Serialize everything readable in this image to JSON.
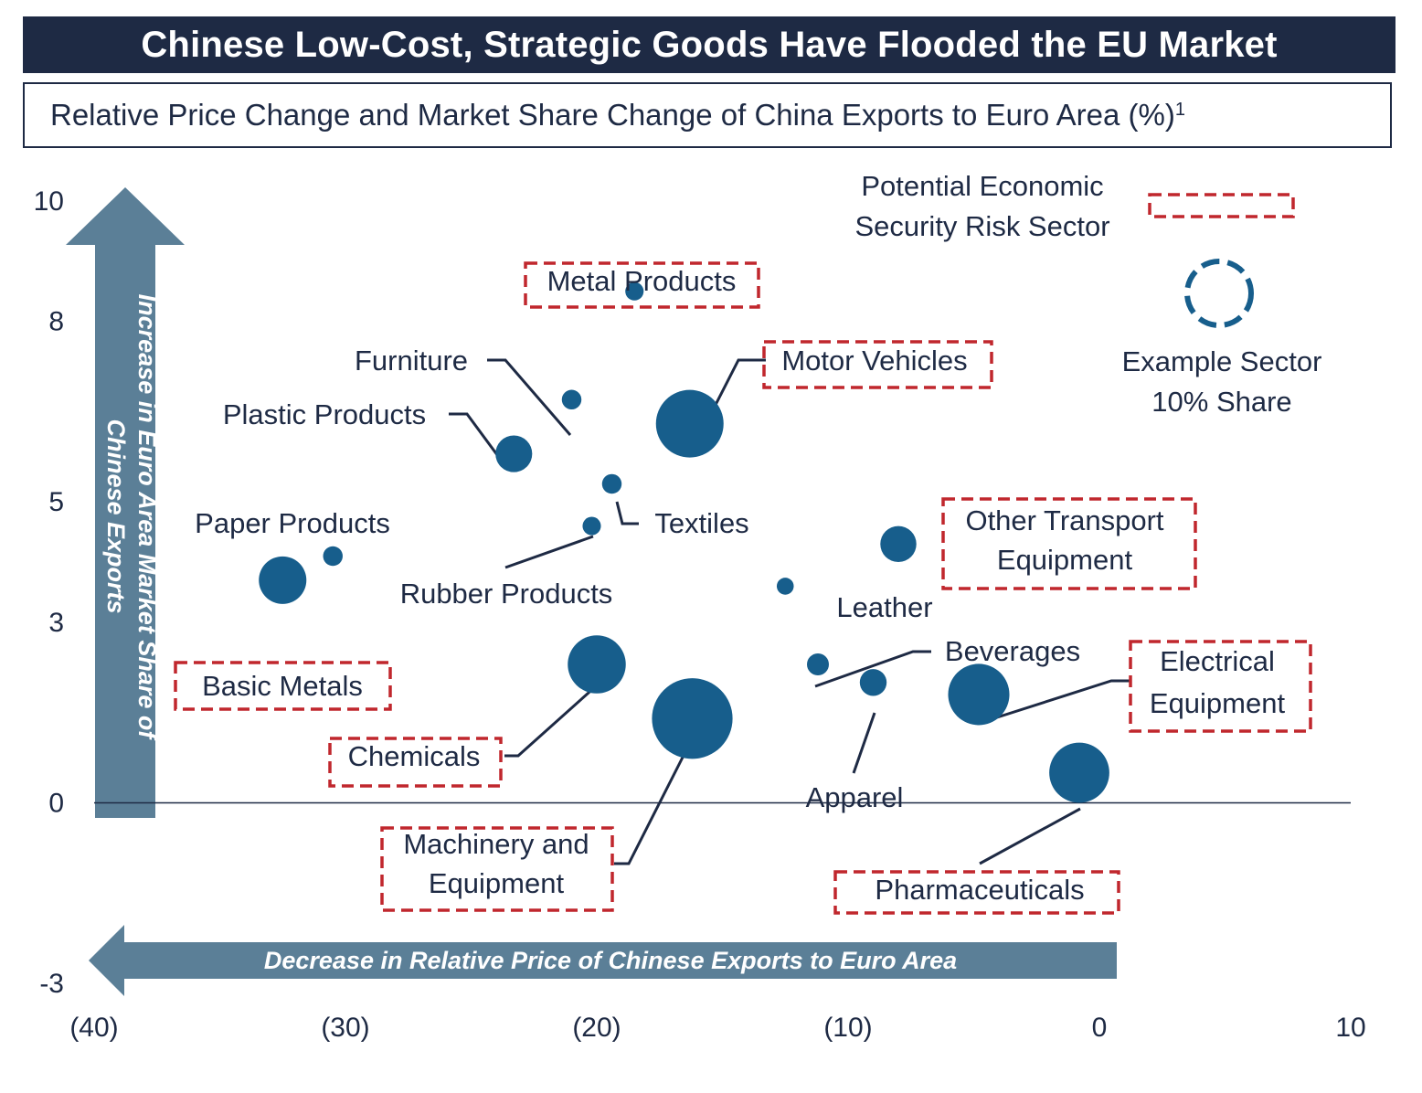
{
  "title": "Chinese Low-Cost, Strategic Goods Have Flooded the EU Market",
  "subtitle": "Relative Price Change and Market Share Change of China Exports to Euro Area (%)",
  "subtitle_footnote": "1",
  "colors": {
    "bubble": "#175e8c",
    "risk_box": "#c0272d",
    "text": "#1e2a44",
    "arrow": "#5b7f97",
    "title_bg": "#1e2a44"
  },
  "legend": {
    "risk_label_line1": "Potential Economic",
    "risk_label_line2": "Security Risk Sector",
    "example_line1": "Example Sector",
    "example_line2": "10% Share"
  },
  "arrows": {
    "y_line1": "Increase in Euro Area Market Share of",
    "y_line2": "Chinese Exports",
    "x": "Decrease in Relative Price of Chinese Exports to Euro Area"
  },
  "chart_data": {
    "type": "scatter",
    "bubble": true,
    "title": "Relative Price Change and Market Share Change of China Exports to Euro Area (%)",
    "xlabel": "Decrease in Relative Price of Chinese Exports to Euro Area",
    "ylabel": "Increase in Euro Area Market Share of Chinese Exports",
    "xlim": [
      -40,
      10
    ],
    "ylim": [
      -3,
      10
    ],
    "x_ticks": [
      -40,
      -30,
      -20,
      -10,
      0,
      10
    ],
    "x_tick_labels": [
      "(40)",
      "(30)",
      "(20)",
      "(10)",
      "0",
      "10"
    ],
    "y_ticks": [
      10,
      8,
      5,
      3,
      0,
      -3
    ],
    "y_tick_labels": [
      "10",
      "8",
      "5",
      "3",
      "0",
      "-3"
    ],
    "points": [
      {
        "name": "Metal Products",
        "x": -18.5,
        "y": 8.5,
        "size": 0.7,
        "risk": true
      },
      {
        "name": "Motor Vehicles",
        "x": -16.3,
        "y": 6.3,
        "size": 9.5,
        "risk": true
      },
      {
        "name": "Furniture",
        "x": -21,
        "y": 6.7,
        "size": 0.8,
        "risk": false
      },
      {
        "name": "Plastic Products",
        "x": -23.3,
        "y": 5.8,
        "size": 2.8,
        "risk": false
      },
      {
        "name": "Textiles",
        "x": -19.4,
        "y": 5.3,
        "size": 0.8,
        "risk": false
      },
      {
        "name": "Rubber Products",
        "x": -20.2,
        "y": 4.6,
        "size": 0.7,
        "risk": false
      },
      {
        "name": "Paper Products",
        "x": -30.5,
        "y": 4.1,
        "size": 0.8,
        "risk": false
      },
      {
        "name": "Basic Metals",
        "x": -32.5,
        "y": 3.7,
        "size": 4.7,
        "risk": true
      },
      {
        "name": "Other Transport Equipment",
        "x": -8,
        "y": 4.3,
        "size": 2.7,
        "risk": true
      },
      {
        "name": "Leather",
        "x": -12.5,
        "y": 3.6,
        "size": 0.6,
        "risk": false
      },
      {
        "name": "Chemicals",
        "x": -20,
        "y": 2.3,
        "size": 7,
        "risk": true
      },
      {
        "name": "Beverages",
        "x": -11.2,
        "y": 2.3,
        "size": 1,
        "risk": false
      },
      {
        "name": "Apparel",
        "x": -9,
        "y": 2,
        "size": 1.5,
        "risk": false
      },
      {
        "name": "Machinery and Equipment",
        "x": -16.2,
        "y": 1.4,
        "size": 13.5,
        "risk": true
      },
      {
        "name": "Electrical Equipment",
        "x": -4.8,
        "y": 1.8,
        "size": 7.8,
        "risk": true
      },
      {
        "name": "Pharmaceuticals",
        "x": -0.8,
        "y": 0.5,
        "size": 7.5,
        "risk": true
      }
    ]
  }
}
